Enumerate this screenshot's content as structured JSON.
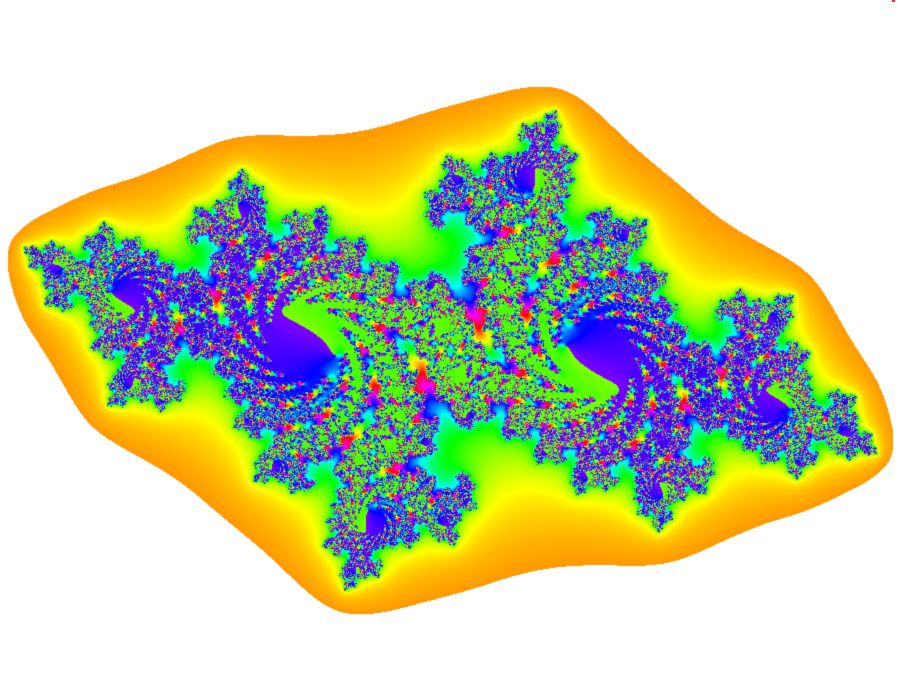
{
  "image": {
    "subject": "julia-set-fractal",
    "background_color": "#ffffff",
    "palette": [
      "#ff0000",
      "#ff8000",
      "#ffff00",
      "#80ff00",
      "#00ff40",
      "#00ffff",
      "#0060ff",
      "#6000ff",
      "#ff00ff",
      "#ff0060"
    ],
    "corner_mark_color": "#ff2a2a"
  },
  "fractal": {
    "type": "julia",
    "c_re": -0.7,
    "c_im": 0.27015,
    "max_iterations": 160,
    "view": {
      "center_re": 0.0,
      "center_im": 0.0,
      "re_span": 3.05,
      "rotation_deg": -19
    }
  }
}
